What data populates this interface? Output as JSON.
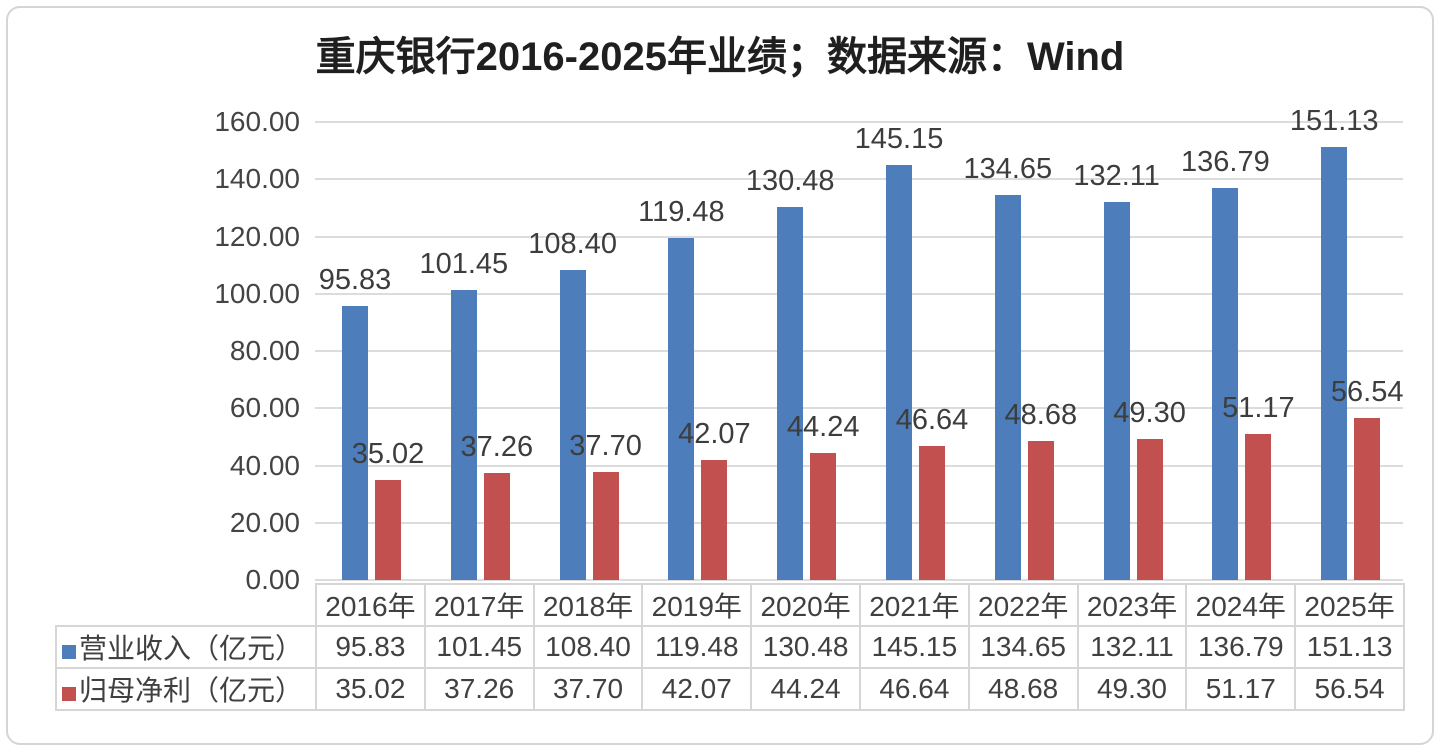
{
  "title": "重庆银行2016-2025年业绩；数据来源：Wind",
  "colors": {
    "revenue_series": "#4D7EBB",
    "profit_series": "#C1504E",
    "grid": "#dcdcdc",
    "axis_text": "#444444",
    "value_label_text": "#3d3d3d",
    "table_border": "#d6d6d6",
    "card_border": "#d5d5d5",
    "title_text": "#1f1f1f"
  },
  "chart_data": {
    "type": "bar",
    "title": "重庆银行2016-2025年业绩；数据来源：Wind",
    "categories": [
      "2016年",
      "2017年",
      "2018年",
      "2019年",
      "2020年",
      "2021年",
      "2022年",
      "2023年",
      "2024年",
      "2025年"
    ],
    "series": [
      {
        "name": "营业收入（亿元）",
        "color": "#4D7EBB",
        "values": [
          95.83,
          101.45,
          108.4,
          119.48,
          130.48,
          145.15,
          134.65,
          132.11,
          136.79,
          151.13
        ]
      },
      {
        "name": "归母净利（亿元）",
        "color": "#C1504E",
        "values": [
          35.02,
          37.26,
          37.7,
          42.07,
          44.24,
          46.64,
          48.68,
          49.3,
          51.17,
          56.54
        ]
      }
    ],
    "xlabel": "",
    "ylabel": "",
    "ylim": [
      0,
      160
    ],
    "ytick_step": 20,
    "ytick_labels": [
      "0.00",
      "20.00",
      "40.00",
      "60.00",
      "80.00",
      "100.00",
      "120.00",
      "140.00",
      "160.00"
    ],
    "grid": true,
    "value_labels": true,
    "value_label_decimals": 2,
    "legend_position": "table-left"
  }
}
